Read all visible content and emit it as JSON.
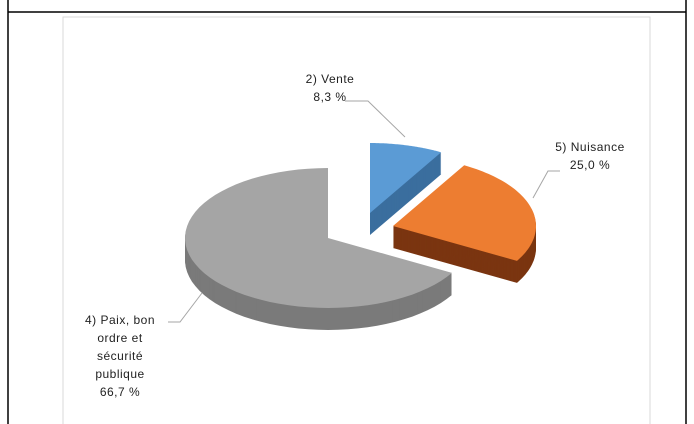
{
  "chart_data": {
    "type": "pie3d",
    "categories": [
      "2) Vente",
      "5) Nuisance",
      "4) Paix, bon ordre et sécurité publique"
    ],
    "values": [
      8.3,
      25.0,
      66.7
    ],
    "value_labels": [
      "8,3 %",
      "25,0 %",
      "66,7 %"
    ],
    "colors": [
      "#5b9bd5",
      "#ed7d31",
      "#a5a5a5"
    ],
    "side_colors": [
      "#3b6e9e",
      "#7a3510",
      "#7a7a7a"
    ]
  }
}
